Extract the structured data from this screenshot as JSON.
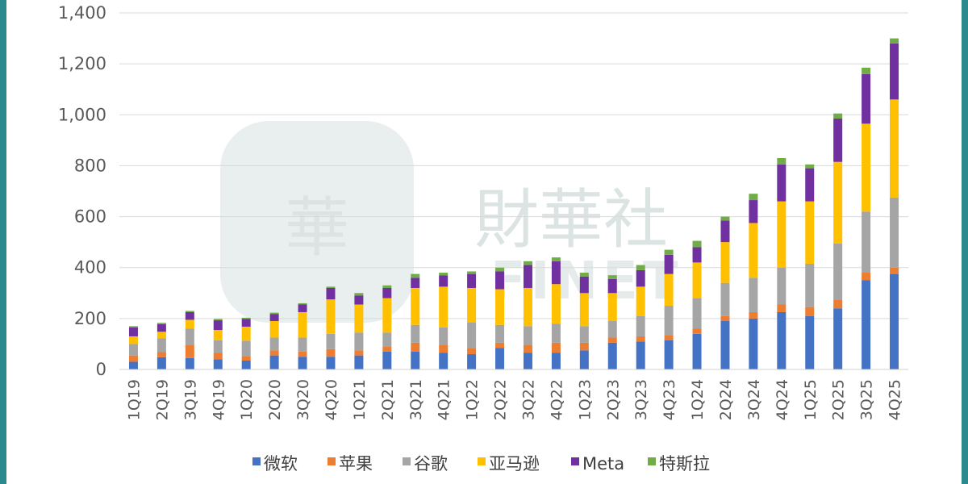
{
  "chart_data": {
    "type": "bar",
    "stacked": true,
    "title": "",
    "xlabel": "",
    "ylabel": "",
    "ylim": [
      0,
      1400
    ],
    "yticks": [
      0,
      200,
      400,
      600,
      800,
      1000,
      1200,
      1400
    ],
    "ytick_labels": [
      "0",
      "200",
      "400",
      "600",
      "800",
      "1,000",
      "1,200",
      "1,400"
    ],
    "grid": true,
    "legend_position": "bottom",
    "categories": [
      "1Q19",
      "2Q19",
      "3Q19",
      "4Q19",
      "1Q20",
      "2Q20",
      "3Q20",
      "4Q20",
      "1Q21",
      "2Q21",
      "3Q21",
      "4Q21",
      "1Q22",
      "2Q22",
      "3Q22",
      "4Q22",
      "1Q23",
      "2Q23",
      "3Q23",
      "4Q23",
      "1Q24",
      "2Q24",
      "3Q24",
      "4Q24",
      "1Q25",
      "2Q25",
      "3Q25",
      "4Q25"
    ],
    "series": [
      {
        "name": "微软",
        "color": "#4472c4",
        "values": [
          30,
          48,
          45,
          40,
          35,
          55,
          50,
          50,
          55,
          70,
          70,
          65,
          60,
          85,
          65,
          65,
          75,
          105,
          110,
          115,
          140,
          190,
          200,
          225,
          210,
          240,
          350,
          375
        ]
      },
      {
        "name": "苹果",
        "color": "#ed7d31",
        "values": [
          25,
          20,
          50,
          25,
          18,
          20,
          20,
          30,
          20,
          20,
          35,
          30,
          25,
          20,
          30,
          40,
          30,
          20,
          20,
          20,
          20,
          20,
          25,
          30,
          35,
          35,
          30,
          25
        ]
      },
      {
        "name": "谷歌",
        "color": "#a5a5a5",
        "values": [
          45,
          55,
          65,
          50,
          60,
          50,
          55,
          60,
          70,
          55,
          70,
          70,
          100,
          70,
          75,
          75,
          65,
          65,
          80,
          115,
          120,
          130,
          135,
          145,
          170,
          220,
          240,
          275
        ]
      },
      {
        "name": "亚马逊",
        "color": "#ffc000",
        "values": [
          30,
          25,
          35,
          40,
          55,
          65,
          100,
          135,
          110,
          135,
          145,
          160,
          135,
          140,
          150,
          155,
          130,
          110,
          115,
          125,
          140,
          160,
          215,
          260,
          245,
          320,
          345,
          385
        ]
      },
      {
        "name": "Meta",
        "color": "#7030a0",
        "values": [
          35,
          30,
          30,
          38,
          30,
          28,
          30,
          45,
          35,
          40,
          40,
          45,
          55,
          70,
          90,
          90,
          65,
          55,
          65,
          75,
          60,
          85,
          90,
          145,
          130,
          170,
          195,
          220
        ]
      },
      {
        "name": "特斯拉",
        "color": "#70ad47",
        "values": [
          5,
          5,
          5,
          5,
          5,
          5,
          5,
          5,
          10,
          10,
          15,
          10,
          10,
          15,
          15,
          15,
          15,
          15,
          20,
          20,
          25,
          15,
          25,
          25,
          15,
          20,
          25,
          20
        ]
      }
    ]
  },
  "watermark": {
    "glyph": "華",
    "brand": "財華社",
    "brand_en": "FINET"
  }
}
